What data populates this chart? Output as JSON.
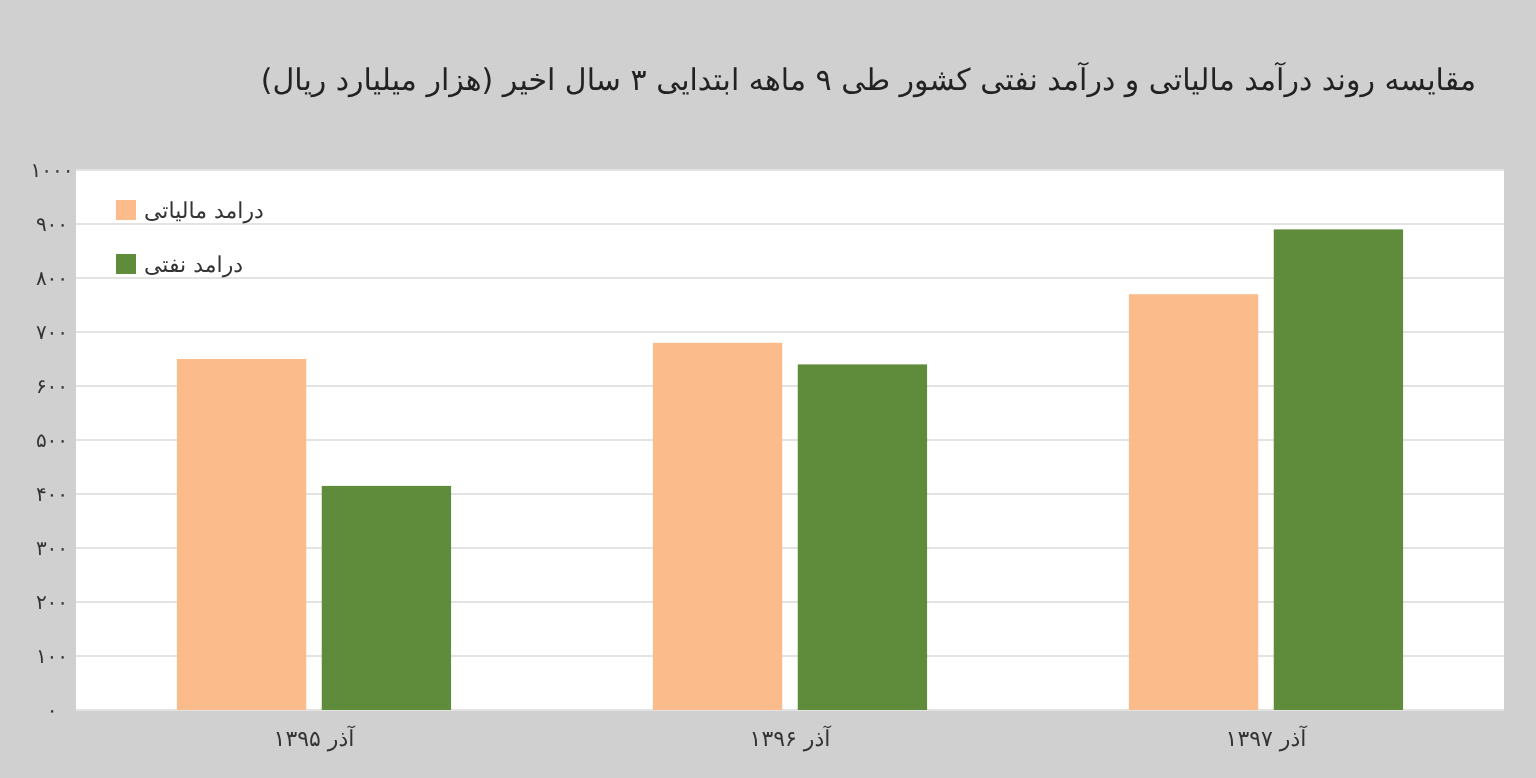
{
  "chart_data": {
    "type": "bar",
    "title": "مقایسه روند درآمد مالیاتی و درآمد نفتی کشور طی  ۹ ماهه ابتدایی ۳ سال اخیر (هزار میلیارد ریال)",
    "categories": [
      "آذر ۱۳۹۵",
      "آذر ۱۳۹۶",
      "آذر ۱۳۹۷"
    ],
    "series": [
      {
        "name": "درامد مالیاتی",
        "color": "#fbbb8a",
        "values": [
          650,
          680,
          770
        ]
      },
      {
        "name": "درامد نفتی",
        "color": "#5e8c3a",
        "values": [
          415,
          640,
          890
        ]
      }
    ],
    "ylim": [
      0,
      1000
    ],
    "yticks": [
      {
        "value": 0,
        "label": "۰"
      },
      {
        "value": 100,
        "label": "۱۰۰"
      },
      {
        "value": 200,
        "label": "۲۰۰"
      },
      {
        "value": 300,
        "label": "۳۰۰"
      },
      {
        "value": 400,
        "label": "۴۰۰"
      },
      {
        "value": 500,
        "label": "۵۰۰"
      },
      {
        "value": 600,
        "label": "۶۰۰"
      },
      {
        "value": 700,
        "label": "۷۰۰"
      },
      {
        "value": 800,
        "label": "۸۰۰"
      },
      {
        "value": 900,
        "label": "۹۰۰"
      },
      {
        "value": 1000,
        "label": "۱۰۰۰"
      }
    ],
    "grid": "y",
    "legend": "top left"
  }
}
